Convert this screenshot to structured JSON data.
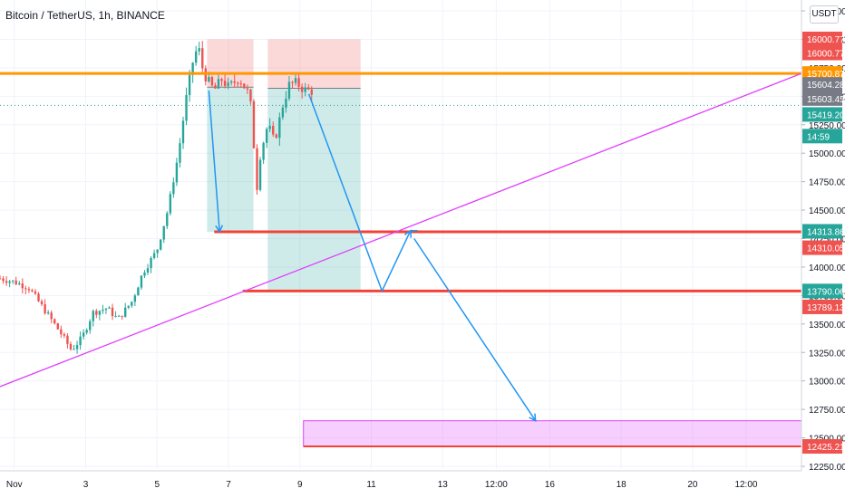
{
  "chart_data": {
    "type": "candlestick",
    "title": "Bitcoin / TetherUS, 1h, BINANCE",
    "currency": "USDT",
    "y_axis": {
      "range": [
        12200,
        16200
      ],
      "ticks": [
        "16250.00",
        "16000.00",
        "15750.00",
        "15500.00",
        "15250.00",
        "15000.00",
        "14750.00",
        "14500.00",
        "14250.00",
        "14000.00",
        "13750.00",
        "13500.00",
        "13250.00",
        "13000.00",
        "12750.00",
        "12500.00",
        "12250.00"
      ]
    },
    "x_axis": {
      "ticks": [
        {
          "label": "Nov",
          "day": 1
        },
        {
          "label": "3",
          "day": 3
        },
        {
          "label": "5",
          "day": 5
        },
        {
          "label": "7",
          "day": 7
        },
        {
          "label": "9",
          "day": 9
        },
        {
          "label": "11",
          "day": 11
        },
        {
          "label": "13",
          "day": 13
        },
        {
          "label": "12:00",
          "day": 14.5
        },
        {
          "label": "16",
          "day": 16
        },
        {
          "label": "18",
          "day": 18
        },
        {
          "label": "20",
          "day": 20
        },
        {
          "label": "12:00",
          "day": 21.5
        }
      ],
      "range": [
        0.6,
        23.05
      ]
    },
    "candle_path": [
      [
        0.6,
        13900
      ],
      [
        1.0,
        13870
      ],
      [
        1.4,
        13820
      ],
      [
        1.9,
        13600
      ],
      [
        2.3,
        13420
      ],
      [
        2.6,
        13270
      ],
      [
        2.9,
        13380
      ],
      [
        3.2,
        13600
      ],
      [
        3.6,
        13640
      ],
      [
        3.9,
        13540
      ],
      [
        4.3,
        13700
      ],
      [
        4.6,
        13950
      ],
      [
        5.0,
        14150
      ],
      [
        5.3,
        14500
      ],
      [
        5.6,
        15000
      ],
      [
        5.8,
        15450
      ],
      [
        6.0,
        15800
      ],
      [
        6.15,
        15950
      ],
      [
        6.3,
        15700
      ],
      [
        6.6,
        15550
      ],
      [
        6.8,
        15650
      ],
      [
        7.0,
        15580
      ],
      [
        7.3,
        15660
      ],
      [
        7.6,
        15500
      ],
      [
        7.8,
        14700
      ],
      [
        7.9,
        15000
      ],
      [
        8.1,
        15250
      ],
      [
        8.3,
        15100
      ],
      [
        8.5,
        15400
      ],
      [
        8.7,
        15600
      ],
      [
        8.9,
        15620
      ],
      [
        9.1,
        15560
      ],
      [
        9.4,
        15540
      ]
    ],
    "price_labels": [
      {
        "text": "16000.77",
        "price": 16004,
        "color": "#ef5350"
      },
      {
        "text": "16000.77",
        "price": 15880,
        "color": "#ef5350"
      },
      {
        "text": "15700.87",
        "price": 15700,
        "color": "#ff9800"
      },
      {
        "text": "15604.28",
        "price": 15604,
        "color": "#787b86"
      },
      {
        "text": "15603.45",
        "price": 15480,
        "color": "#787b86"
      },
      {
        "text": "15419.20",
        "price": 15340,
        "color": "#26a69a"
      },
      {
        "text": "14:59",
        "price": 15150,
        "color": "#26a69a"
      },
      {
        "text": "14313.86",
        "price": 14314,
        "color": "#26a69a"
      },
      {
        "text": "14310.05",
        "price": 14170,
        "color": "#ef5350"
      },
      {
        "text": "13790.06",
        "price": 13790,
        "color": "#26a69a"
      },
      {
        "text": "13789.13",
        "price": 13650,
        "color": "#ef5350"
      },
      {
        "text": "12425.21",
        "price": 12425,
        "color": "#ef5350"
      }
    ],
    "horizontal_lines": [
      {
        "price": 15700,
        "from_day": 0.6,
        "to_day": 23.05,
        "color": "#ff9800",
        "width": 3
      },
      {
        "price": 14310,
        "from_day": 6.6,
        "to_day": 23.05,
        "color": "#f44336",
        "width": 3
      },
      {
        "price": 13790,
        "from_day": 7.4,
        "to_day": 23.05,
        "color": "#f44336",
        "width": 3
      }
    ],
    "trendline": {
      "from": [
        0.6,
        12950
      ],
      "to": [
        23.05,
        15700
      ],
      "color": "#e040fb"
    },
    "dotted_line": {
      "price": 15420,
      "color": "#26a69a"
    },
    "positions": [
      {
        "from_day": 6.4,
        "to_day": 7.7,
        "entry": 15580,
        "stop": 16000,
        "target": 14310
      },
      {
        "from_day": 8.1,
        "to_day": 10.7,
        "entry": 15570,
        "stop": 16000,
        "target": 13790
      }
    ],
    "target_zone": {
      "from_day": 9.1,
      "to_day": 23.05,
      "top": 12650,
      "bottom": 12425,
      "color": "#e040fb"
    },
    "projection_arrows": [
      [
        [
          6.45,
          15550
        ],
        [
          6.75,
          14310
        ]
      ],
      [
        [
          9.25,
          15520
        ],
        [
          11.3,
          13790
        ],
        [
          12.1,
          14320
        ]
      ],
      [
        [
          12.1,
          14320
        ],
        [
          12.3,
          14320
        ]
      ],
      [
        [
          12.2,
          14250
        ],
        [
          15.6,
          12650
        ]
      ]
    ],
    "colors": {
      "up": "#26a69a",
      "down": "#ef5350",
      "arrow": "#2196f3",
      "grid": "#f0f3fa"
    }
  }
}
